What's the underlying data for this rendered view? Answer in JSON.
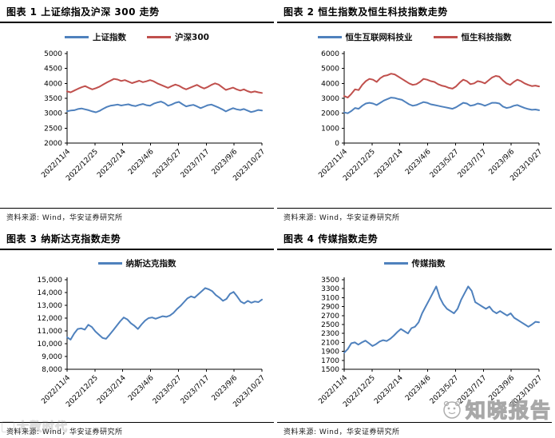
{
  "watermarks": {
    "right_brand": "知晓报告",
    "left_brand": "大数时代"
  },
  "chart_data": [
    {
      "type": "line",
      "title": "图表 1 上证综指及沪深 300 走势",
      "source": "资料来源: Wind，华安证券研究所",
      "legend_position": "top-center",
      "grid": false,
      "x_ticks": [
        "2022/11/4",
        "2022/12/25",
        "2023/2/14",
        "2023/4/6",
        "2023/5/27",
        "2023/7/17",
        "2023/9/6",
        "2023/10/27"
      ],
      "ylim": [
        2000,
        5000
      ],
      "ystep": 500,
      "y_comma": false,
      "series": [
        {
          "name": "上证指数",
          "color": "#4f81bd",
          "values": [
            3070,
            3090,
            3100,
            3140,
            3160,
            3130,
            3100,
            3060,
            3030,
            3080,
            3150,
            3210,
            3250,
            3270,
            3290,
            3260,
            3280,
            3300,
            3260,
            3240,
            3280,
            3310,
            3270,
            3250,
            3320,
            3360,
            3390,
            3340,
            3250,
            3290,
            3350,
            3380,
            3300,
            3230,
            3260,
            3280,
            3230,
            3170,
            3220,
            3270,
            3290,
            3240,
            3190,
            3130,
            3060,
            3120,
            3170,
            3130,
            3110,
            3140,
            3090,
            3040,
            3070,
            3110,
            3090
          ]
        },
        {
          "name": "沪深300",
          "color": "#c0504d",
          "values": [
            3730,
            3700,
            3760,
            3820,
            3870,
            3910,
            3850,
            3800,
            3840,
            3890,
            3960,
            4030,
            4090,
            4150,
            4130,
            4080,
            4110,
            4060,
            4010,
            4050,
            4090,
            4040,
            4070,
            4110,
            4070,
            4000,
            3950,
            3900,
            3850,
            3910,
            3960,
            3920,
            3850,
            3800,
            3850,
            3900,
            3950,
            3880,
            3830,
            3880,
            3950,
            4000,
            3960,
            3870,
            3780,
            3820,
            3860,
            3800,
            3760,
            3800,
            3740,
            3700,
            3730,
            3700,
            3680
          ]
        }
      ]
    },
    {
      "type": "line",
      "title": "图表 2 恒生指数及恒生科技指数走势",
      "source": "资料来源: Wind，华安证券研究所",
      "legend_position": "top-center",
      "grid": false,
      "x_ticks": [
        "2022/11/4",
        "2022/12/25",
        "2023/2/14",
        "2023/4/6",
        "2023/5/27",
        "2023/7/17",
        "2023/9/6",
        "2023/10/27"
      ],
      "ylim": [
        0,
        6000
      ],
      "ystep": 1000,
      "y_comma": false,
      "series": [
        {
          "name": "恒生互联网科技业",
          "color": "#4f81bd",
          "values": [
            2050,
            2000,
            2150,
            2350,
            2300,
            2500,
            2650,
            2700,
            2650,
            2550,
            2700,
            2850,
            2950,
            3050,
            3020,
            2950,
            2900,
            2750,
            2600,
            2500,
            2550,
            2650,
            2750,
            2700,
            2600,
            2550,
            2500,
            2450,
            2400,
            2350,
            2300,
            2400,
            2550,
            2700,
            2650,
            2500,
            2550,
            2650,
            2600,
            2500,
            2600,
            2700,
            2700,
            2650,
            2450,
            2350,
            2400,
            2500,
            2550,
            2450,
            2350,
            2280,
            2230,
            2250,
            2200
          ]
        },
        {
          "name": "恒生科技指数",
          "color": "#c0504d",
          "values": [
            3150,
            3050,
            3300,
            3600,
            3550,
            3900,
            4150,
            4300,
            4250,
            4100,
            4350,
            4500,
            4550,
            4650,
            4600,
            4450,
            4300,
            4150,
            4000,
            3900,
            3950,
            4100,
            4300,
            4250,
            4150,
            4100,
            3950,
            3850,
            3800,
            3700,
            3650,
            3800,
            4050,
            4250,
            4150,
            3950,
            4000,
            4150,
            4100,
            4000,
            4200,
            4400,
            4500,
            4450,
            4200,
            4000,
            3900,
            4100,
            4250,
            4150,
            4000,
            3900,
            3820,
            3850,
            3800
          ]
        }
      ]
    },
    {
      "type": "line",
      "title": "图表 3 纳斯达克指数走势",
      "source": "资料来源: Wind，华安证券研究所",
      "legend_position": "top-center",
      "grid": false,
      "x_ticks": [
        "2022/11/4",
        "2022/12/25",
        "2023/2/14",
        "2023/4/6",
        "2023/5/27",
        "2023/7/17",
        "2023/9/6",
        "2023/10/27"
      ],
      "ylim": [
        8000,
        15000
      ],
      "ystep": 1000,
      "y_comma": true,
      "series": [
        {
          "name": "纳斯达克指数",
          "color": "#4f81bd",
          "values": [
            10500,
            10320,
            10800,
            11150,
            11200,
            11100,
            11480,
            11300,
            10950,
            10700,
            10450,
            10380,
            10700,
            11050,
            11400,
            11750,
            12050,
            11900,
            11600,
            11400,
            11150,
            11500,
            11800,
            12000,
            12050,
            11950,
            12050,
            12150,
            12100,
            12200,
            12400,
            12700,
            12950,
            13250,
            13550,
            13700,
            13600,
            13850,
            14100,
            14350,
            14250,
            14100,
            13800,
            13600,
            13350,
            13500,
            13900,
            14050,
            13700,
            13300,
            13150,
            13350,
            13200,
            13300,
            13250,
            13450
          ]
        }
      ]
    },
    {
      "type": "line",
      "title": "图表 4 传媒指数走势",
      "source": "资料来源: Wind，华安证券研究所",
      "legend_position": "top-center",
      "grid": false,
      "x_ticks": [
        "2022/11/4",
        "2022/12/25",
        "2023/2/14",
        "2023/4/6",
        "2023/5/27",
        "2023/7/17",
        "2023/9/6",
        "2023/10/27"
      ],
      "ylim": [
        1500,
        3500
      ],
      "ystep": 200,
      "y_comma": false,
      "series": [
        {
          "name": "传媒指数",
          "color": "#4f81bd",
          "values": [
            1870,
            1950,
            2080,
            2100,
            2050,
            2100,
            2140,
            2080,
            2020,
            2060,
            2120,
            2150,
            2130,
            2180,
            2250,
            2330,
            2400,
            2350,
            2300,
            2420,
            2450,
            2550,
            2750,
            2900,
            3050,
            3200,
            3350,
            3100,
            2950,
            2850,
            2800,
            2750,
            2850,
            3050,
            3200,
            3350,
            3250,
            3000,
            2950,
            2900,
            2850,
            2900,
            2800,
            2750,
            2800,
            2750,
            2700,
            2750,
            2650,
            2600,
            2550,
            2500,
            2450,
            2500,
            2560,
            2550
          ]
        }
      ]
    }
  ]
}
